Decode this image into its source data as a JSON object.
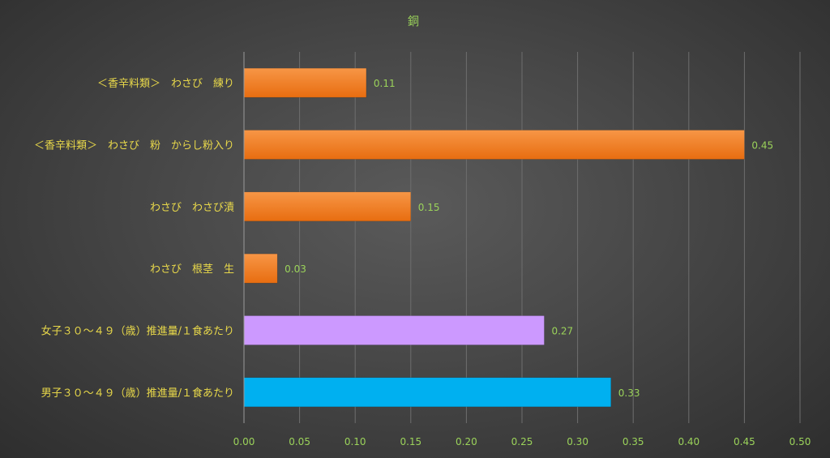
{
  "chart_data": {
    "type": "bar",
    "orientation": "horizontal",
    "title": "銅",
    "categories": [
      "＜香辛料類＞　わさび　練り",
      "＜香辛料類＞　わさび　粉　からし粉入り",
      "わさび　わさび漬",
      "わさび　根茎　生",
      "女子３０～４９（歳）推進量/１食あたり",
      "男子３０～４９（歳）推進量/１食あたり"
    ],
    "values": [
      0.11,
      0.45,
      0.15,
      0.03,
      0.27,
      0.33
    ],
    "value_labels": [
      "0.11",
      "0.45",
      "0.15",
      "0.03",
      "0.27",
      "0.33"
    ],
    "colors": [
      "#f07c22",
      "#f07c22",
      "#f07c22",
      "#f07c22",
      "#cc99ff",
      "#00b0f0"
    ],
    "xlim": [
      0,
      0.5
    ],
    "x_ticks": [
      "0.00",
      "0.05",
      "0.10",
      "0.15",
      "0.20",
      "0.25",
      "0.30",
      "0.35",
      "0.40",
      "0.45",
      "0.50"
    ],
    "xlabel": "",
    "ylabel": "",
    "grid": true,
    "legend": "none"
  }
}
